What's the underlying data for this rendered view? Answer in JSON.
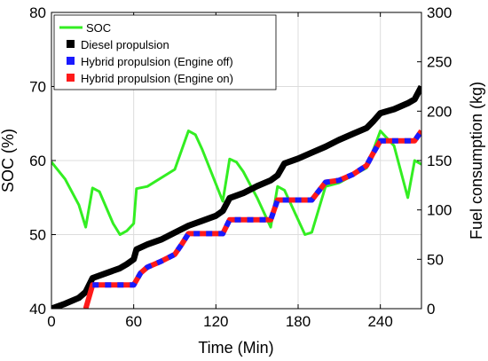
{
  "chart_data": {
    "type": "line",
    "xlabel": "Time (Min)",
    "ylabel_left": "SOC (%)",
    "ylabel_right": "Fuel consumption (kg)",
    "xlim": [
      0,
      270
    ],
    "ylim_left": [
      40,
      80
    ],
    "ylim_right": [
      0,
      300
    ],
    "xticks": [
      0,
      60,
      120,
      180,
      240
    ],
    "yticks_left": [
      40,
      50,
      60,
      70,
      80
    ],
    "yticks_right": [
      0,
      50,
      100,
      150,
      200,
      250,
      300
    ],
    "grid": true,
    "legend_position": "top-left",
    "series": [
      {
        "name": "SOC",
        "axis": "left",
        "color": "#33ee22",
        "style": "solid",
        "x": [
          0,
          10,
          20,
          25,
          30,
          35,
          45,
          50,
          55,
          60,
          62,
          70,
          90,
          100,
          105,
          110,
          125,
          130,
          135,
          140,
          150,
          160,
          165,
          170,
          185,
          190,
          200,
          210,
          220,
          230,
          240,
          250,
          260,
          265,
          270
        ],
        "y": [
          59.8,
          57.5,
          54,
          51,
          56.3,
          55.8,
          51.5,
          50,
          50.5,
          51.5,
          56.2,
          56.5,
          58.8,
          64,
          63.5,
          61.5,
          54.5,
          60.2,
          59.8,
          58.5,
          55,
          51,
          56.5,
          56,
          50,
          50.3,
          56.5,
          57,
          58,
          59,
          64,
          62,
          55,
          60,
          59.5
        ]
      },
      {
        "name": "Diesel propulsion",
        "axis": "right",
        "color": "#000000",
        "style": "solid",
        "x": [
          0,
          10,
          20,
          25,
          30,
          40,
          50,
          55,
          60,
          62,
          70,
          80,
          90,
          100,
          110,
          120,
          125,
          130,
          140,
          150,
          160,
          165,
          170,
          180,
          190,
          200,
          210,
          220,
          230,
          235,
          240,
          250,
          260,
          265,
          270
        ],
        "y": [
          0,
          5,
          11,
          17,
          31,
          36,
          41,
          45,
          50,
          60,
          65,
          70,
          77,
          84,
          89,
          94,
          99,
          112,
          117,
          124,
          130,
          135,
          147,
          152,
          158,
          164,
          171,
          177,
          183,
          190,
          198,
          202,
          208,
          212,
          225
        ]
      },
      {
        "name": "Hybrid propulsion (Engine off)",
        "axis": "right",
        "color": "#1a1aff",
        "style": "dashed",
        "x": [
          30,
          40,
          50,
          55,
          60,
          65,
          70,
          80,
          90,
          95,
          100,
          110,
          120,
          125,
          130,
          140,
          150,
          160,
          165,
          170,
          180,
          190,
          200,
          210,
          220,
          230,
          235,
          240,
          250,
          260,
          265,
          270
        ],
        "y": [
          24,
          24,
          24,
          24,
          24,
          36,
          42,
          48,
          55,
          65,
          76,
          76,
          76,
          76,
          90,
          90,
          90,
          90,
          110,
          110,
          110,
          110,
          128,
          130,
          136,
          145,
          158,
          170,
          170,
          170,
          170,
          180
        ]
      },
      {
        "name": "Hybrid propulsion (Engine on)",
        "axis": "right",
        "color": "#ff1a1a",
        "style": "dashed",
        "x": [
          25,
          30,
          40,
          50,
          55,
          60,
          65,
          70,
          80,
          90,
          95,
          100,
          110,
          120,
          125,
          130,
          140,
          150,
          160,
          165,
          170,
          180,
          190,
          200,
          210,
          220,
          230,
          235,
          240,
          250,
          260,
          265,
          270
        ],
        "y": [
          0,
          24,
          24,
          24,
          24,
          24,
          36,
          42,
          48,
          55,
          65,
          76,
          76,
          76,
          76,
          90,
          90,
          90,
          90,
          110,
          110,
          110,
          110,
          128,
          130,
          136,
          145,
          158,
          170,
          170,
          170,
          170,
          180
        ]
      }
    ]
  }
}
